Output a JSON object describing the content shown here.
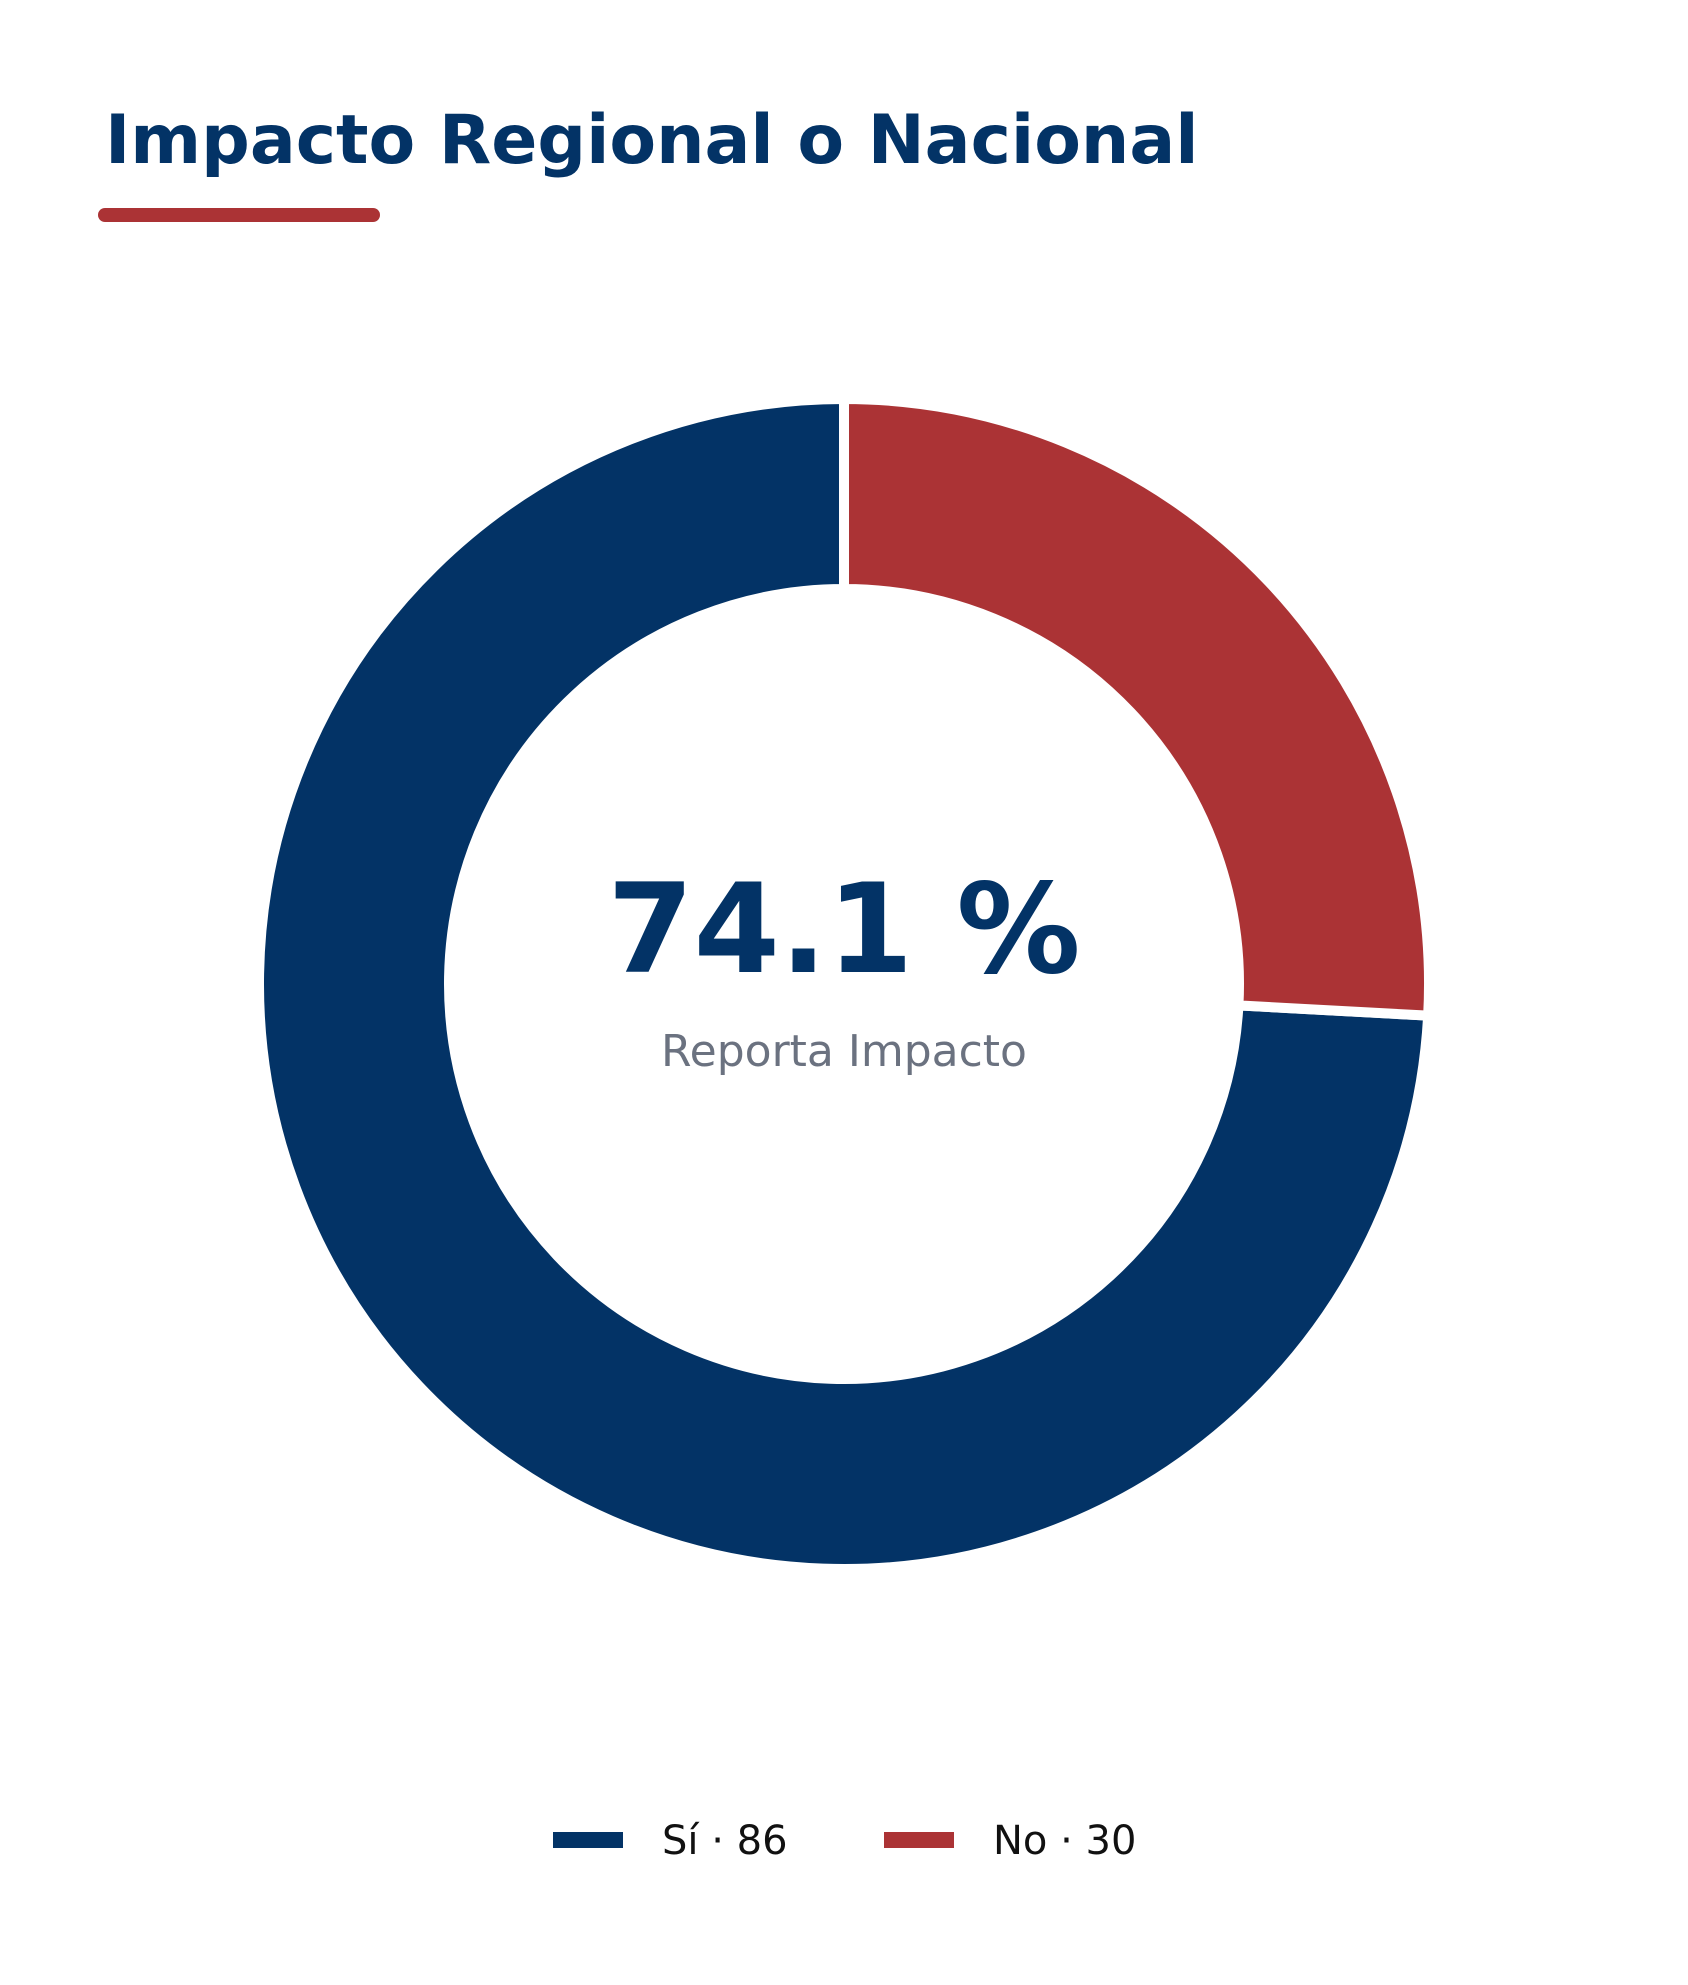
{
  "chart_data": {
    "type": "donut",
    "title": "Impacto Regional o Nacional",
    "categories": [
      "Sí",
      "No"
    ],
    "values": [
      86,
      30
    ],
    "value_labels": [
      "Sí · 86",
      "No · 30"
    ],
    "colors": [
      "#033366",
      "#ab3335"
    ],
    "center_text": "74.1 %",
    "center_subtitle": "Reporta Impacto",
    "legend": "bottom"
  }
}
